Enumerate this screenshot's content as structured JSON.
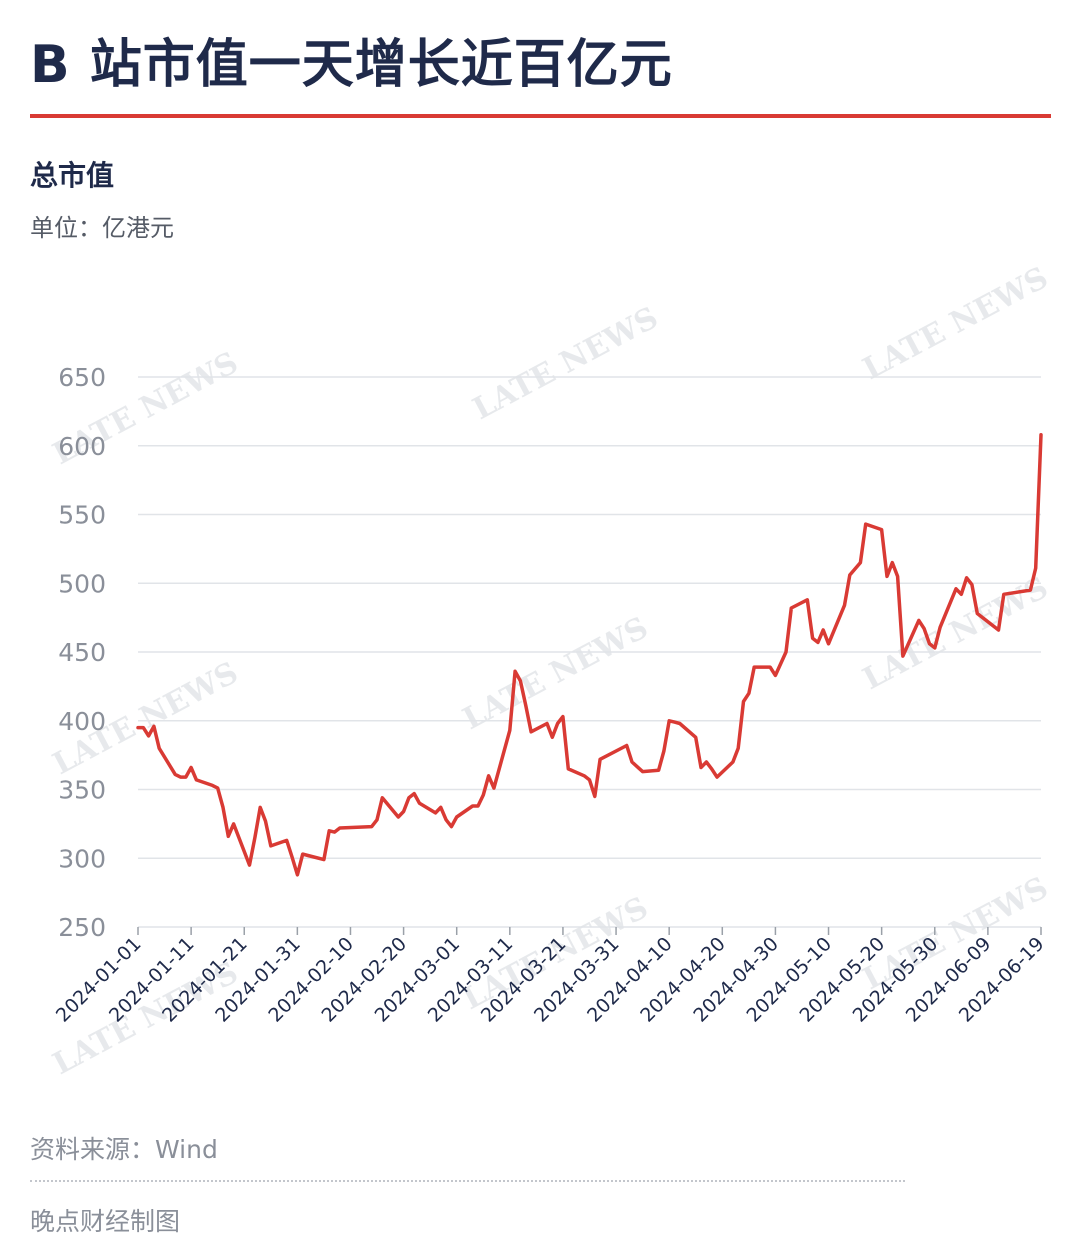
{
  "header": {
    "title": "B 站市值一天增长近百亿元",
    "subtitle": "总市值",
    "unit": "单位：亿港元"
  },
  "footer": {
    "source": "资料来源：Wind",
    "credit": "晚点财经制图"
  },
  "watermark": {
    "text": "LATE NEWS"
  },
  "colors": {
    "line": "#d93a34",
    "grid": "#e1e4e8",
    "title": "#1f2a4a",
    "rule": "#d93a34"
  },
  "chart_data": {
    "type": "line",
    "title": "B 站市值一天增长近百亿元",
    "ylabel": "总市值",
    "xlabel": "",
    "unit": "亿港元",
    "ylim": [
      250,
      650
    ],
    "yticks": [
      250,
      300,
      350,
      400,
      450,
      500,
      550,
      600,
      650
    ],
    "xlim": [
      "2024-01-01",
      "2024-06-19"
    ],
    "xticks": [
      "2024-01-01",
      "2024-01-11",
      "2024-01-21",
      "2024-01-31",
      "2024-02-10",
      "2024-02-20",
      "2024-03-01",
      "2024-03-11",
      "2024-03-21",
      "2024-03-31",
      "2024-04-10",
      "2024-04-20",
      "2024-04-30",
      "2024-05-10",
      "2024-05-20",
      "2024-05-30",
      "2024-06-09",
      "2024-06-19"
    ],
    "grid": true,
    "legend": "none",
    "series": [
      {
        "name": "",
        "points": [
          [
            "2024-01-01",
            395
          ],
          [
            "2024-01-02",
            395
          ],
          [
            "2024-01-03",
            389
          ],
          [
            "2024-01-04",
            396
          ],
          [
            "2024-01-05",
            380
          ],
          [
            "2024-01-08",
            361
          ],
          [
            "2024-01-09",
            359
          ],
          [
            "2024-01-10",
            359
          ],
          [
            "2024-01-11",
            366
          ],
          [
            "2024-01-12",
            357
          ],
          [
            "2024-01-15",
            353
          ],
          [
            "2024-01-16",
            351
          ],
          [
            "2024-01-17",
            337
          ],
          [
            "2024-01-18",
            316
          ],
          [
            "2024-01-19",
            325
          ],
          [
            "2024-01-22",
            295
          ],
          [
            "2024-01-23",
            315
          ],
          [
            "2024-01-24",
            337
          ],
          [
            "2024-01-25",
            327
          ],
          [
            "2024-01-26",
            309
          ],
          [
            "2024-01-29",
            313
          ],
          [
            "2024-01-30",
            301
          ],
          [
            "2024-01-31",
            288
          ],
          [
            "2024-02-01",
            303
          ],
          [
            "2024-02-02",
            302
          ],
          [
            "2024-02-05",
            299
          ],
          [
            "2024-02-06",
            320
          ],
          [
            "2024-02-07",
            319
          ],
          [
            "2024-02-08",
            322
          ],
          [
            "2024-02-14",
            323
          ],
          [
            "2024-02-15",
            328
          ],
          [
            "2024-02-16",
            344
          ],
          [
            "2024-02-19",
            330
          ],
          [
            "2024-02-20",
            334
          ],
          [
            "2024-02-21",
            344
          ],
          [
            "2024-02-22",
            347
          ],
          [
            "2024-02-23",
            340
          ],
          [
            "2024-02-26",
            333
          ],
          [
            "2024-02-27",
            337
          ],
          [
            "2024-02-28",
            328
          ],
          [
            "2024-02-29",
            323
          ],
          [
            "2024-03-01",
            330
          ],
          [
            "2024-03-04",
            338
          ],
          [
            "2024-03-05",
            338
          ],
          [
            "2024-03-06",
            346
          ],
          [
            "2024-03-07",
            360
          ],
          [
            "2024-03-08",
            351
          ],
          [
            "2024-03-11",
            393
          ],
          [
            "2024-03-12",
            436
          ],
          [
            "2024-03-13",
            429
          ],
          [
            "2024-03-14",
            411
          ],
          [
            "2024-03-15",
            392
          ],
          [
            "2024-03-18",
            398
          ],
          [
            "2024-03-19",
            388
          ],
          [
            "2024-03-20",
            398
          ],
          [
            "2024-03-21",
            403
          ],
          [
            "2024-03-22",
            365
          ],
          [
            "2024-03-25",
            360
          ],
          [
            "2024-03-26",
            357
          ],
          [
            "2024-03-27",
            345
          ],
          [
            "2024-03-28",
            372
          ],
          [
            "2024-04-02",
            382
          ],
          [
            "2024-04-03",
            370
          ],
          [
            "2024-04-05",
            363
          ],
          [
            "2024-04-08",
            364
          ],
          [
            "2024-04-09",
            378
          ],
          [
            "2024-04-10",
            400
          ],
          [
            "2024-04-11",
            399
          ],
          [
            "2024-04-12",
            398
          ],
          [
            "2024-04-15",
            388
          ],
          [
            "2024-04-16",
            366
          ],
          [
            "2024-04-17",
            370
          ],
          [
            "2024-04-18",
            365
          ],
          [
            "2024-04-19",
            359
          ],
          [
            "2024-04-22",
            370
          ],
          [
            "2024-04-23",
            380
          ],
          [
            "2024-04-24",
            414
          ],
          [
            "2024-04-25",
            420
          ],
          [
            "2024-04-26",
            439
          ],
          [
            "2024-04-29",
            439
          ],
          [
            "2024-04-30",
            433
          ],
          [
            "2024-05-02",
            450
          ],
          [
            "2024-05-03",
            482
          ],
          [
            "2024-05-06",
            488
          ],
          [
            "2024-05-07",
            460
          ],
          [
            "2024-05-08",
            457
          ],
          [
            "2024-05-09",
            466
          ],
          [
            "2024-05-10",
            456
          ],
          [
            "2024-05-13",
            484
          ],
          [
            "2024-05-14",
            506
          ],
          [
            "2024-05-16",
            515
          ],
          [
            "2024-05-17",
            543
          ],
          [
            "2024-05-20",
            539
          ],
          [
            "2024-05-21",
            505
          ],
          [
            "2024-05-22",
            515
          ],
          [
            "2024-05-23",
            505
          ],
          [
            "2024-05-24",
            447
          ],
          [
            "2024-05-27",
            473
          ],
          [
            "2024-05-28",
            467
          ],
          [
            "2024-05-29",
            456
          ],
          [
            "2024-05-30",
            453
          ],
          [
            "2024-05-31",
            468
          ],
          [
            "2024-06-03",
            496
          ],
          [
            "2024-06-04",
            492
          ],
          [
            "2024-06-05",
            504
          ],
          [
            "2024-06-06",
            499
          ],
          [
            "2024-06-07",
            478
          ],
          [
            "2024-06-11",
            466
          ],
          [
            "2024-06-12",
            492
          ],
          [
            "2024-06-17",
            495
          ],
          [
            "2024-06-18",
            511
          ],
          [
            "2024-06-19",
            608
          ]
        ]
      }
    ]
  }
}
